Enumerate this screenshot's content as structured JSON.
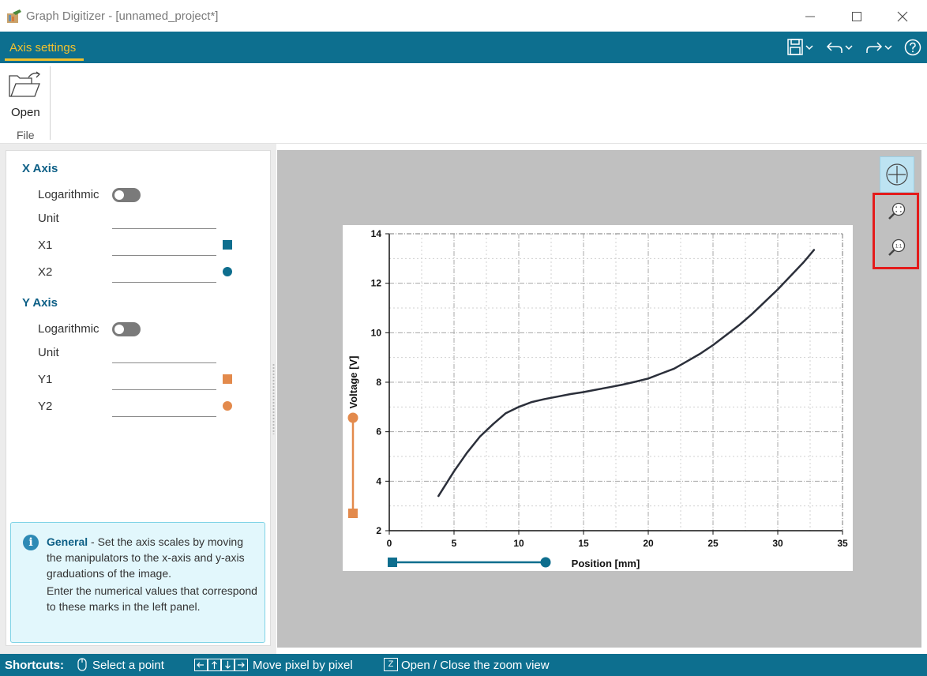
{
  "window": {
    "title": "Graph Digitizer - [unnamed_project*]",
    "controls": [
      "minimize-icon",
      "maximize-icon",
      "close-icon"
    ]
  },
  "ribbon": {
    "tab_label": "Axis settings",
    "quick_tools": [
      "save-icon",
      "undo-icon",
      "redo-icon",
      "help-icon"
    ],
    "open_label": "Open",
    "group_label": "File"
  },
  "axis_panel": {
    "x_axis": {
      "title": "X Axis",
      "log_label": "Logarithmic",
      "log_enabled": false,
      "unit_label": "Unit",
      "unit_value": "",
      "p1_label": "X1",
      "p1_value": "",
      "p2_label": "X2",
      "p2_value": "",
      "marker_color": "#0e6e8e"
    },
    "y_axis": {
      "title": "Y Axis",
      "log_label": "Logarithmic",
      "log_enabled": false,
      "unit_label": "Unit",
      "unit_value": "",
      "p1_label": "Y1",
      "p1_value": "",
      "p2_label": "Y2",
      "p2_value": "",
      "marker_color": "#e38a4c"
    }
  },
  "info": {
    "heading": "General",
    "text1": " - Set the axis scales by moving the manipulators to the x-axis and y-axis graduations of the image.",
    "text2": "Enter the numerical values that correspond to these marks in the left panel."
  },
  "view_tools": [
    "crosshair-icon",
    "zoom-fit-icon",
    "zoom-100-icon"
  ],
  "chart_data": {
    "type": "line",
    "xlabel": "Position [mm]",
    "ylabel": "Voltage [V]",
    "xlim": [
      0,
      35
    ],
    "ylim": [
      2,
      14
    ],
    "xticks": [
      "0",
      "5",
      "10",
      "15",
      "20",
      "25",
      "30",
      "35"
    ],
    "yticks": [
      "2",
      "4",
      "6",
      "8",
      "10",
      "12",
      "14"
    ],
    "grid": true,
    "series": [
      {
        "color": "#2b2f3a",
        "x": [
          3.8,
          5,
          6,
          7,
          8,
          9,
          10,
          11,
          12,
          13,
          14,
          15,
          16,
          17,
          18,
          19,
          20,
          21,
          22,
          23,
          24,
          25,
          26,
          27,
          28,
          29,
          30,
          31,
          32,
          32.8
        ],
        "y": [
          3.4,
          4.4,
          5.15,
          5.8,
          6.3,
          6.75,
          7.0,
          7.2,
          7.32,
          7.42,
          7.52,
          7.6,
          7.7,
          7.8,
          7.9,
          8.02,
          8.15,
          8.35,
          8.55,
          8.85,
          9.15,
          9.5,
          9.9,
          10.3,
          10.75,
          11.25,
          11.75,
          12.3,
          12.85,
          13.35
        ]
      }
    ]
  },
  "statusbar": {
    "label": "Shortcuts:",
    "select_text": "Select a point",
    "move_text": "Move pixel by pixel",
    "zoom_key": "Z",
    "zoom_text": "Open / Close the zoom view"
  }
}
